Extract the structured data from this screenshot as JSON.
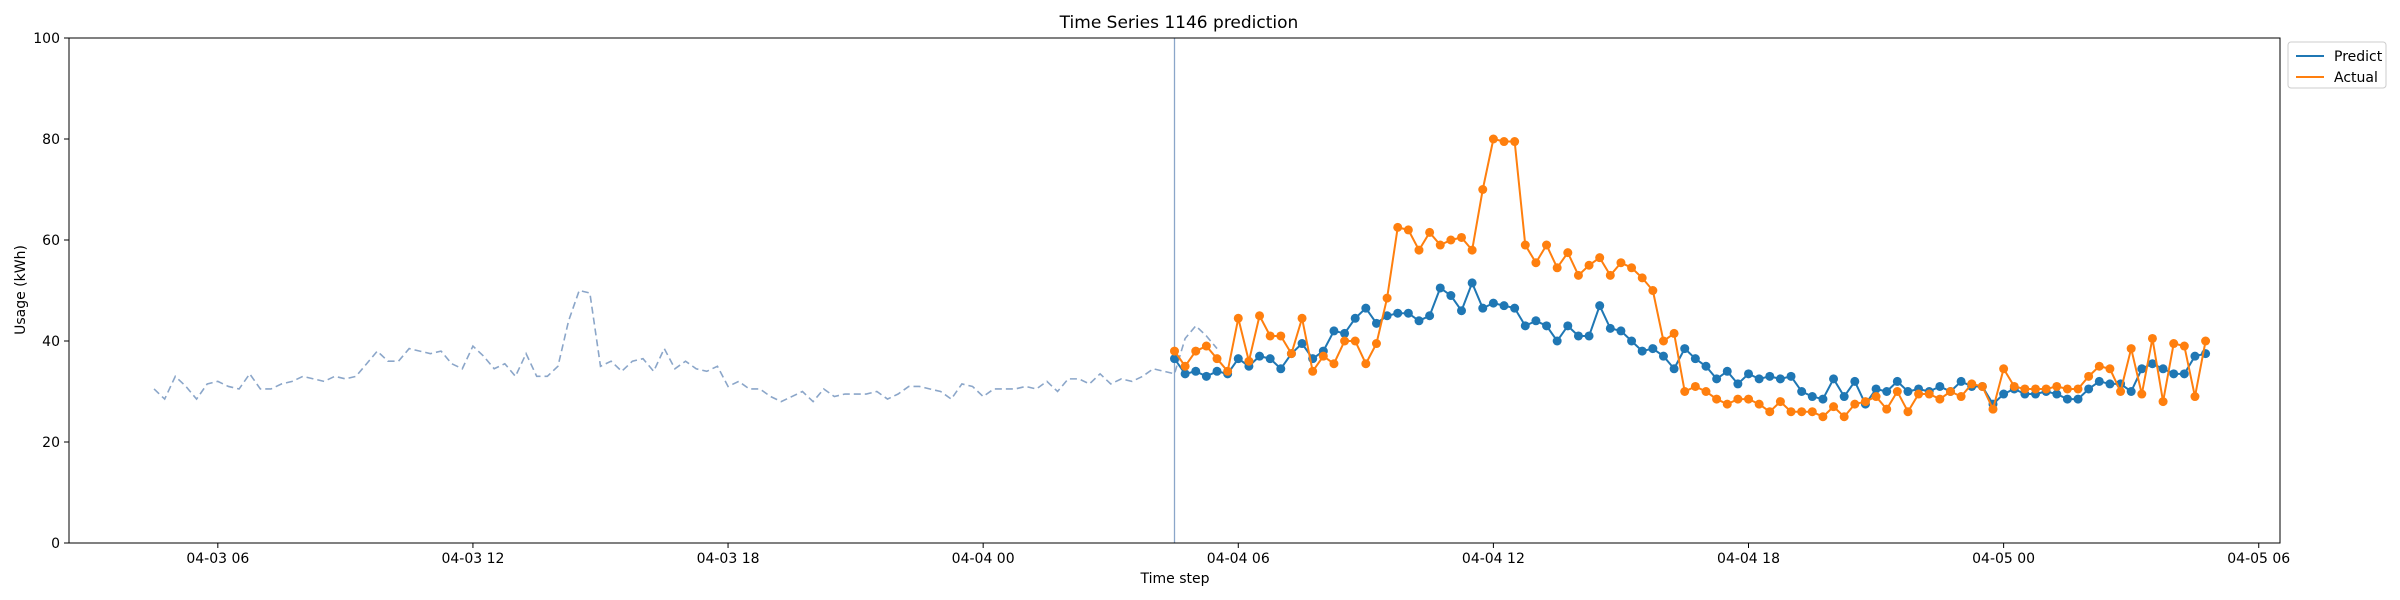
{
  "chart_data": {
    "type": "line",
    "title": "Time Series 1146 prediction",
    "xlabel": "Time step",
    "ylabel": "Usage (kWh)",
    "ylim": [
      0,
      100
    ],
    "xlim": [
      "2024-04-03 02:30",
      "2024-04-05 06:30"
    ],
    "yticks": [
      0,
      20,
      40,
      60,
      80,
      100
    ],
    "xticks": [
      {
        "t": "2024-04-03 06:00",
        "label": "04-03 06"
      },
      {
        "t": "2024-04-03 12:00",
        "label": "04-03 12"
      },
      {
        "t": "2024-04-03 18:00",
        "label": "04-03 18"
      },
      {
        "t": "2024-04-04 00:00",
        "label": "04-04 00"
      },
      {
        "t": "2024-04-04 06:00",
        "label": "04-04 06"
      },
      {
        "t": "2024-04-04 12:00",
        "label": "04-04 12"
      },
      {
        "t": "2024-04-04 18:00",
        "label": "04-04 18"
      },
      {
        "t": "2024-04-05 00:00",
        "label": "04-05 00"
      },
      {
        "t": "2024-04-05 06:00",
        "label": "04-05 06"
      }
    ],
    "grid": false,
    "legend": "top-right outside",
    "forecast_start": "2024-04-04 04:30",
    "history": {
      "start": "2024-04-03 04:30",
      "step_minutes": 15,
      "color": "#8ba6c9",
      "style": "dashed",
      "values": [
        30.5,
        28.5,
        33,
        31,
        28.5,
        31.5,
        32,
        31,
        30.5,
        33.5,
        30.5,
        30.5,
        31.5,
        32,
        33,
        32.5,
        32,
        33,
        32.5,
        33,
        35.5,
        38,
        36,
        36,
        38.5,
        38,
        37.5,
        38,
        35.5,
        34.5,
        39,
        37,
        34.5,
        35.5,
        33,
        37.5,
        33,
        33,
        35,
        44,
        50,
        49.5,
        35,
        36,
        34,
        36,
        36.5,
        34,
        38.5,
        34.5,
        36,
        34.5,
        34,
        35,
        31,
        32,
        30.5,
        30.5,
        29,
        28,
        29,
        30,
        28,
        30.5,
        29,
        29.5,
        29.5,
        29.5,
        30,
        28.5,
        29.5,
        31,
        31,
        30.5,
        30,
        28.5,
        31.5,
        31,
        29,
        30.5,
        30.5,
        30.5,
        31,
        30.5,
        32,
        30,
        32.5,
        32.5,
        31.5,
        33.5,
        31.5,
        32.5,
        32,
        33,
        34.5,
        34,
        33.5,
        40.5,
        43,
        41,
        38.5
      ]
    },
    "series": [
      {
        "name": "Predict",
        "color": "#1f77b4",
        "start": "2024-04-04 04:30",
        "step_minutes": 15,
        "values": [
          36.5,
          33.5,
          34,
          33,
          34,
          33.5,
          36.5,
          35,
          37,
          36.5,
          34.5,
          37.5,
          39.5,
          36.5,
          38,
          42,
          41.5,
          44.5,
          46.5,
          43.5,
          45,
          45.5,
          45.5,
          44,
          45,
          50.5,
          49,
          46,
          51.5,
          46.5,
          47.5,
          47,
          46.5,
          43,
          44,
          43,
          40,
          43,
          41,
          41,
          47,
          42.5,
          42,
          40,
          38,
          38.5,
          37,
          34.5,
          38.5,
          36.5,
          35,
          32.5,
          34,
          31.5,
          33.5,
          32.5,
          33,
          32.5,
          33,
          30,
          29,
          28.5,
          32.5,
          29,
          32,
          27.5,
          30.5,
          30,
          32,
          30,
          30.5,
          30,
          31,
          30,
          32,
          31,
          31,
          27.5,
          29.5,
          30.5,
          29.5,
          29.5,
          30,
          29.5,
          28.5,
          28.5,
          30.5,
          32,
          31.5,
          31.5,
          30,
          34.5,
          35.5,
          34.5,
          33.5,
          33.5,
          37,
          37.5
        ]
      },
      {
        "name": "Actual",
        "color": "#ff7f0e",
        "start": "2024-04-04 04:30",
        "step_minutes": 15,
        "values": [
          38,
          35,
          38,
          39,
          36.5,
          34,
          44.5,
          36,
          45,
          41,
          41,
          37.5,
          44.5,
          34,
          37,
          35.5,
          40,
          40,
          35.5,
          39.5,
          48.5,
          62.5,
          62,
          58,
          61.5,
          59,
          60,
          60.5,
          58,
          70,
          80,
          79.5,
          79.5,
          59,
          55.5,
          59,
          54.5,
          57.5,
          53,
          55,
          56.5,
          53,
          55.5,
          54.5,
          52.5,
          50,
          40,
          41.5,
          30,
          31,
          30,
          28.5,
          27.5,
          28.5,
          28.5,
          27.5,
          26,
          28,
          26,
          26,
          26,
          25,
          27,
          25,
          27.5,
          28,
          29,
          26.5,
          30,
          26,
          29.5,
          29.5,
          28.5,
          30,
          29,
          31.5,
          31,
          26.5,
          34.5,
          31,
          30.5,
          30.5,
          30.5,
          31,
          30.5,
          30.5,
          33,
          35,
          34.5,
          30,
          38.5,
          29.5,
          40.5,
          28,
          39.5,
          39,
          29,
          40
        ]
      }
    ]
  }
}
